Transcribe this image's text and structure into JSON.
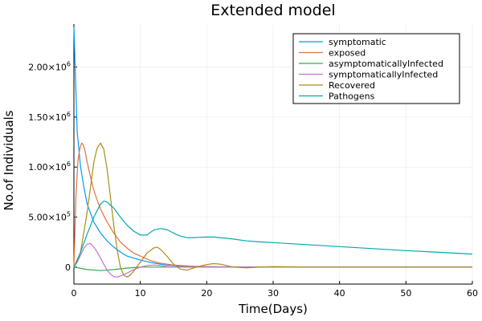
{
  "chart_data": {
    "type": "line",
    "title": "Extended model",
    "xlabel": "Time(Days)",
    "ylabel": "No.of Individuals",
    "xlim": [
      0,
      60
    ],
    "ylim": [
      -170000,
      2430000
    ],
    "grid": true,
    "legend_position": "top-right",
    "x_ticks": [
      0,
      10,
      20,
      30,
      40,
      50,
      60
    ],
    "x_tick_labels": [
      "0",
      "10",
      "20",
      "30",
      "40",
      "50",
      "60"
    ],
    "y_ticks": [
      0,
      500000,
      1000000,
      1500000,
      2000000
    ],
    "y_tick_labels": [
      {
        "mantissa": "0",
        "exp": ""
      },
      {
        "mantissa": "5.00×10",
        "exp": "5"
      },
      {
        "mantissa": "1.00×10",
        "exp": "6"
      },
      {
        "mantissa": "1.50×10",
        "exp": "6"
      },
      {
        "mantissa": "2.00×10",
        "exp": "6"
      }
    ],
    "series": [
      {
        "name": "symptomatic",
        "color": "#009AFA",
        "points": [
          [
            0,
            2400000
          ],
          [
            0.5,
            1350000
          ],
          [
            1,
            1000000
          ],
          [
            1.5,
            800000
          ],
          [
            2,
            630000
          ],
          [
            3,
            450000
          ],
          [
            4,
            340000
          ],
          [
            5,
            260000
          ],
          [
            6,
            200000
          ],
          [
            7,
            150000
          ],
          [
            8,
            110000
          ],
          [
            10,
            70000
          ],
          [
            12,
            40000
          ],
          [
            14,
            20000
          ],
          [
            16,
            10000
          ],
          [
            20,
            4000
          ],
          [
            25,
            1500
          ],
          [
            30,
            0
          ],
          [
            40,
            0
          ],
          [
            60,
            0
          ]
        ]
      },
      {
        "name": "exposed",
        "color": "#E26F46",
        "points": [
          [
            0,
            0
          ],
          [
            0.3,
            700000
          ],
          [
            0.6,
            1060000
          ],
          [
            0.8,
            1150000
          ],
          [
            1,
            1215000
          ],
          [
            1.2,
            1240000
          ],
          [
            1.4,
            1225000
          ],
          [
            1.7,
            1150000
          ],
          [
            2,
            1050000
          ],
          [
            2.5,
            900000
          ],
          [
            3,
            770000
          ],
          [
            3.5,
            670000
          ],
          [
            4,
            580000
          ],
          [
            5,
            450000
          ],
          [
            6,
            340000
          ],
          [
            7,
            250000
          ],
          [
            8,
            190000
          ],
          [
            9,
            140000
          ],
          [
            10,
            110000
          ],
          [
            11,
            80000
          ],
          [
            12,
            55000
          ],
          [
            13,
            40000
          ],
          [
            15,
            20000
          ],
          [
            18,
            8000
          ],
          [
            22,
            2000
          ],
          [
            30,
            0
          ],
          [
            60,
            0
          ]
        ]
      },
      {
        "name": "asymptomaticallyInfected",
        "color": "#3EA44E",
        "points": [
          [
            0,
            0
          ],
          [
            2,
            -25000
          ],
          [
            4,
            -35000
          ],
          [
            6,
            -25000
          ],
          [
            8,
            -10000
          ],
          [
            10,
            0
          ],
          [
            15,
            0
          ],
          [
            20,
            0
          ],
          [
            60,
            0
          ]
        ]
      },
      {
        "name": "symptomaticallyInfected",
        "color": "#C371D2",
        "points": [
          [
            0,
            0
          ],
          [
            0.5,
            50000
          ],
          [
            1,
            120000
          ],
          [
            1.5,
            190000
          ],
          [
            2,
            230000
          ],
          [
            2.5,
            235000
          ],
          [
            3,
            200000
          ],
          [
            3.5,
            150000
          ],
          [
            4,
            90000
          ],
          [
            4.5,
            30000
          ],
          [
            5,
            -30000
          ],
          [
            5.5,
            -70000
          ],
          [
            6,
            -95000
          ],
          [
            6.5,
            -100000
          ],
          [
            7,
            -90000
          ],
          [
            8,
            -60000
          ],
          [
            9,
            -25000
          ],
          [
            10,
            0
          ],
          [
            11,
            15000
          ],
          [
            12,
            20000
          ],
          [
            13,
            15000
          ],
          [
            14,
            5000
          ],
          [
            15,
            0
          ],
          [
            20,
            0
          ],
          [
            60,
            0
          ]
        ]
      },
      {
        "name": "Recovered",
        "color": "#AC8D18",
        "points": [
          [
            0,
            0
          ],
          [
            1,
            150000
          ],
          [
            2,
            550000
          ],
          [
            2.5,
            800000
          ],
          [
            3,
            1050000
          ],
          [
            3.5,
            1190000
          ],
          [
            4,
            1240000
          ],
          [
            4.5,
            1180000
          ],
          [
            5,
            980000
          ],
          [
            5.5,
            700000
          ],
          [
            6,
            420000
          ],
          [
            6.5,
            180000
          ],
          [
            7,
            0
          ],
          [
            7.5,
            -80000
          ],
          [
            8,
            -100000
          ],
          [
            8.5,
            -80000
          ],
          [
            9,
            -40000
          ],
          [
            10,
            50000
          ],
          [
            11,
            140000
          ],
          [
            12,
            190000
          ],
          [
            12.5,
            200000
          ],
          [
            13,
            180000
          ],
          [
            14,
            110000
          ],
          [
            15,
            30000
          ],
          [
            16,
            -20000
          ],
          [
            17,
            -30000
          ],
          [
            18,
            -10000
          ],
          [
            19,
            10000
          ],
          [
            20,
            25000
          ],
          [
            21,
            35000
          ],
          [
            22,
            30000
          ],
          [
            23,
            15000
          ],
          [
            24,
            0
          ],
          [
            26,
            -8000
          ],
          [
            28,
            0
          ],
          [
            30,
            5000
          ],
          [
            35,
            0
          ],
          [
            40,
            0
          ],
          [
            60,
            0
          ]
        ]
      },
      {
        "name": "Pathogens",
        "color": "#00A9AD",
        "points": [
          [
            0,
            0
          ],
          [
            0.5,
            60000
          ],
          [
            1,
            150000
          ],
          [
            2,
            330000
          ],
          [
            3,
            500000
          ],
          [
            4,
            630000
          ],
          [
            4.5,
            660000
          ],
          [
            5,
            650000
          ],
          [
            6,
            590000
          ],
          [
            7,
            500000
          ],
          [
            8,
            420000
          ],
          [
            9,
            360000
          ],
          [
            10,
            320000
          ],
          [
            11,
            320000
          ],
          [
            12,
            370000
          ],
          [
            13,
            385000
          ],
          [
            14,
            375000
          ],
          [
            15,
            340000
          ],
          [
            16,
            310000
          ],
          [
            17,
            295000
          ],
          [
            18,
            295000
          ],
          [
            19,
            298000
          ],
          [
            20,
            300000
          ],
          [
            21,
            300000
          ],
          [
            22,
            295000
          ],
          [
            24,
            280000
          ],
          [
            26,
            262000
          ],
          [
            28,
            252000
          ],
          [
            30,
            245000
          ],
          [
            35,
            225000
          ],
          [
            40,
            205000
          ],
          [
            45,
            185000
          ],
          [
            50,
            165000
          ],
          [
            55,
            148000
          ],
          [
            60,
            130000
          ]
        ]
      }
    ]
  }
}
